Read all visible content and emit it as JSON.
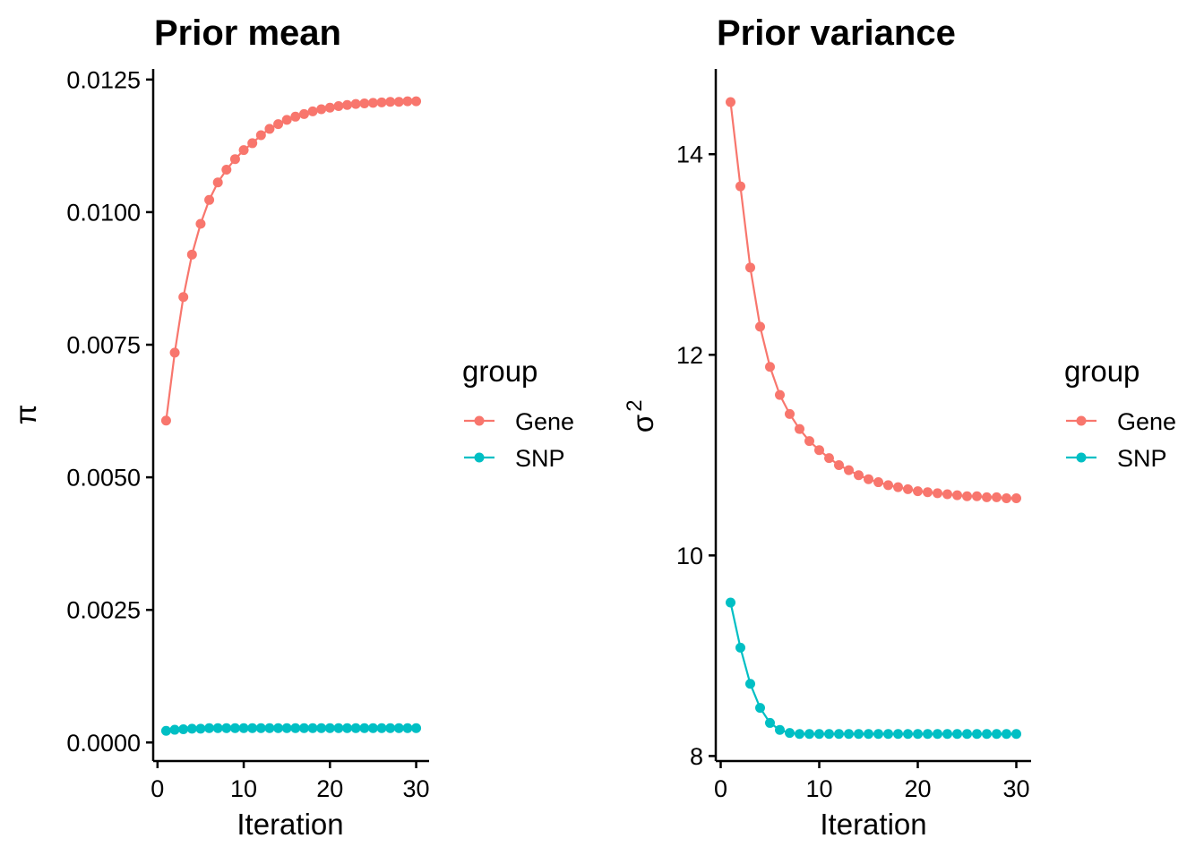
{
  "chart_data": [
    {
      "type": "line",
      "title": "Prior mean",
      "xlabel": "Iteration",
      "ylabel": "π",
      "xlim": [
        -0.5,
        31.5
      ],
      "ylim": [
        -0.00035,
        0.0127
      ],
      "xticks": [
        0,
        10,
        20,
        30
      ],
      "xtick_labels": [
        "0",
        "10",
        "20",
        "30"
      ],
      "yticks": [
        0.0,
        0.0025,
        0.005,
        0.0075,
        0.01,
        0.0125
      ],
      "ytick_labels": [
        "0.0000",
        "0.0025",
        "0.0050",
        "0.0075",
        "0.0100",
        "0.0125"
      ],
      "legend_title": "group",
      "series": [
        {
          "name": "Gene",
          "color": "#F8766D",
          "x": [
            1,
            2,
            3,
            4,
            5,
            6,
            7,
            8,
            9,
            10,
            11,
            12,
            13,
            14,
            15,
            16,
            17,
            18,
            19,
            20,
            21,
            22,
            23,
            24,
            25,
            26,
            27,
            28,
            29,
            30
          ],
          "values": [
            0.00607,
            0.00735,
            0.0084,
            0.0092,
            0.00978,
            0.01023,
            0.01056,
            0.0108,
            0.011,
            0.01117,
            0.0113,
            0.01145,
            0.01157,
            0.01166,
            0.01174,
            0.0118,
            0.01185,
            0.0119,
            0.01194,
            0.01197,
            0.012,
            0.01202,
            0.01204,
            0.01205,
            0.01206,
            0.01207,
            0.01208,
            0.01208,
            0.01209,
            0.01209
          ]
        },
        {
          "name": "SNP",
          "color": "#00BFC4",
          "x": [
            1,
            2,
            3,
            4,
            5,
            6,
            7,
            8,
            9,
            10,
            11,
            12,
            13,
            14,
            15,
            16,
            17,
            18,
            19,
            20,
            21,
            22,
            23,
            24,
            25,
            26,
            27,
            28,
            29,
            30
          ],
          "values": [
            0.00022,
            0.00024,
            0.00025,
            0.00026,
            0.00026,
            0.00027,
            0.00027,
            0.00027,
            0.00027,
            0.00027,
            0.00027,
            0.00027,
            0.00027,
            0.00027,
            0.00027,
            0.00027,
            0.00027,
            0.00027,
            0.00027,
            0.00027,
            0.00027,
            0.00027,
            0.00027,
            0.00027,
            0.00027,
            0.00027,
            0.00027,
            0.00027,
            0.00027,
            0.00027
          ]
        }
      ]
    },
    {
      "type": "line",
      "title": "Prior variance",
      "xlabel": "Iteration",
      "ylabel": "σ",
      "ylabel_superscript": "2",
      "xlim": [
        -0.5,
        31.5
      ],
      "ylim": [
        7.95,
        14.85
      ],
      "xticks": [
        0,
        10,
        20,
        30
      ],
      "xtick_labels": [
        "0",
        "10",
        "20",
        "30"
      ],
      "yticks": [
        8,
        10,
        12,
        14
      ],
      "ytick_labels": [
        "8",
        "10",
        "12",
        "14"
      ],
      "legend_title": "group",
      "series": [
        {
          "name": "Gene",
          "color": "#F8766D",
          "x": [
            1,
            2,
            3,
            4,
            5,
            6,
            7,
            8,
            9,
            10,
            11,
            12,
            13,
            14,
            15,
            16,
            17,
            18,
            19,
            20,
            21,
            22,
            23,
            24,
            25,
            26,
            27,
            28,
            29,
            30
          ],
          "values": [
            14.52,
            13.68,
            12.87,
            12.28,
            11.88,
            11.6,
            11.41,
            11.26,
            11.14,
            11.05,
            10.97,
            10.9,
            10.85,
            10.8,
            10.76,
            10.73,
            10.7,
            10.68,
            10.66,
            10.64,
            10.63,
            10.62,
            10.61,
            10.6,
            10.59,
            10.59,
            10.58,
            10.58,
            10.57,
            10.57
          ]
        },
        {
          "name": "SNP",
          "color": "#00BFC4",
          "x": [
            1,
            2,
            3,
            4,
            5,
            6,
            7,
            8,
            9,
            10,
            11,
            12,
            13,
            14,
            15,
            16,
            17,
            18,
            19,
            20,
            21,
            22,
            23,
            24,
            25,
            26,
            27,
            28,
            29,
            30
          ],
          "values": [
            9.53,
            9.08,
            8.72,
            8.48,
            8.33,
            8.26,
            8.23,
            8.22,
            8.22,
            8.22,
            8.22,
            8.22,
            8.22,
            8.22,
            8.22,
            8.22,
            8.22,
            8.22,
            8.22,
            8.22,
            8.22,
            8.22,
            8.22,
            8.22,
            8.22,
            8.22,
            8.22,
            8.22,
            8.22,
            8.22
          ]
        }
      ]
    }
  ]
}
